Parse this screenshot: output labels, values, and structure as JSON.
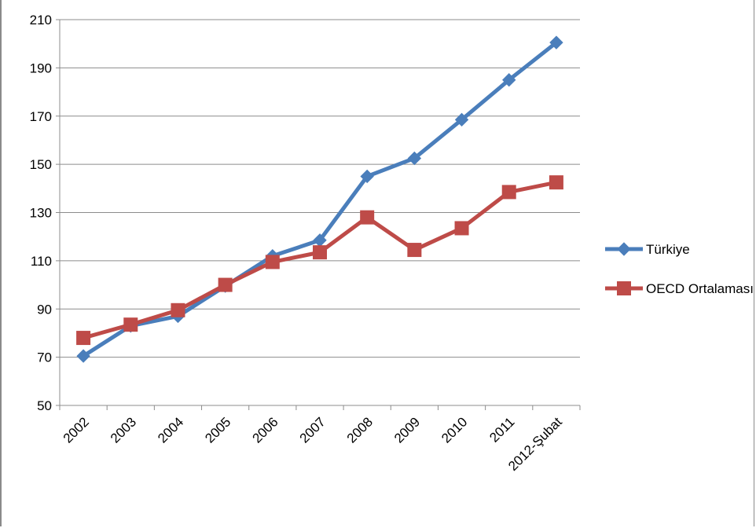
{
  "chart_data": {
    "type": "line",
    "categories": [
      "2002",
      "2003",
      "2004",
      "2005",
      "2006",
      "2007",
      "2008",
      "2009",
      "2010",
      "2011",
      "2012-Şubat"
    ],
    "series": [
      {
        "name": "Türkiye",
        "values": [
          70.5,
          83,
          87,
          99.5,
          112,
          118.5,
          145,
          152.5,
          168.5,
          185,
          200.5
        ],
        "color": "#4a7ebb",
        "marker": "diamond"
      },
      {
        "name": "OECD Ortalaması",
        "values": [
          78,
          83.5,
          89.5,
          100,
          109.5,
          113.5,
          128,
          114.5,
          123.5,
          138.5,
          142.5
        ],
        "color": "#be4b48",
        "marker": "square"
      }
    ],
    "yticks": [
      50,
      70,
      90,
      110,
      130,
      150,
      170,
      190,
      210
    ],
    "ylim": [
      50,
      210
    ],
    "grid": true,
    "legend": "right"
  }
}
